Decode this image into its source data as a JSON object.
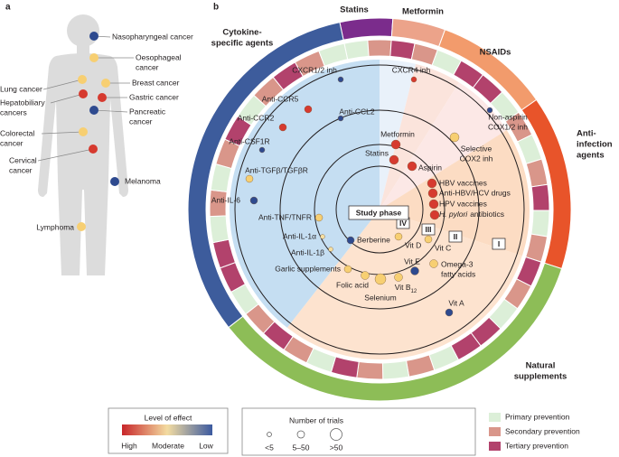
{
  "panel_a": {
    "label": "a",
    "cancers": [
      {
        "lines": [
          "Nasopharyngeal cancer"
        ],
        "color": "#2e4a8f"
      },
      {
        "lines": [
          "Oesophageal",
          "cancer"
        ],
        "color": "#f7cf72"
      },
      {
        "lines": [
          "Lung cancer"
        ],
        "color": "#f7cf72"
      },
      {
        "lines": [
          "Breast cancer"
        ],
        "color": "#f7cf72"
      },
      {
        "lines": [
          "Hepatobiliary",
          "cancers"
        ],
        "color": "#d63a2f"
      },
      {
        "lines": [
          "Gastric cancer"
        ],
        "color": "#d63a2f"
      },
      {
        "lines": [
          "Pancreatic",
          "cancer"
        ],
        "color": "#2e4a8f"
      },
      {
        "lines": [
          "Colorectal",
          "cancer"
        ],
        "color": "#f7cf72"
      },
      {
        "lines": [
          "Cervical",
          "cancer"
        ],
        "color": "#d63a2f"
      },
      {
        "lines": [
          "Melanoma"
        ],
        "color": "#2e4a8f"
      },
      {
        "lines": [
          "Lymphoma"
        ],
        "color": "#f7cf72"
      }
    ]
  },
  "panel_b": {
    "label": "b",
    "center_label": "Study phase",
    "phases": [
      "IV",
      "III",
      "II",
      "I"
    ],
    "classes": [
      {
        "lines": [
          "Statins"
        ],
        "color": "#7b2c8c"
      },
      {
        "lines": [
          "Metformin"
        ],
        "color": "#eca38a"
      },
      {
        "lines": [
          "NSAIDs"
        ],
        "color": "#f29b6c"
      },
      {
        "lines": [
          "Anti-",
          "infection",
          "agents"
        ],
        "color": "#e8542a"
      },
      {
        "lines": [
          "Natural",
          "supplements"
        ],
        "color": "#8dbd57"
      },
      {
        "lines": [
          "Cytokine-",
          "specific agents"
        ],
        "color": "#3d5c9c"
      }
    ],
    "agents": [
      {
        "lines": [
          "CXCR1/2 inh"
        ],
        "color": "#2e4a8f"
      },
      {
        "lines": [
          "CXCR4 inh"
        ],
        "color": "#d63a2f"
      },
      {
        "lines": [
          "Anti-CCR5"
        ],
        "color": "#d63a2f"
      },
      {
        "lines": [
          "Anti-CCL2"
        ],
        "color": "#2e4a8f"
      },
      {
        "lines": [
          "Anti-CCR2"
        ],
        "color": "#d63a2f"
      },
      {
        "lines": [
          "Anti-CSF1R"
        ],
        "color": "#2e4a8f"
      },
      {
        "lines": [
          "Anti-TGFβ/TGFβR"
        ],
        "color": "#f7cf72"
      },
      {
        "lines": [
          "Anti-IL-6"
        ],
        "color": "#2e4a8f"
      },
      {
        "lines": [
          "Anti-TNF/TNFR"
        ],
        "color": "#f7cf72"
      },
      {
        "lines": [
          "Anti-IL-1α"
        ],
        "color": "#f6dfa0"
      },
      {
        "lines": [
          "Anti-IL-1β"
        ],
        "color": "#f6dfa0"
      },
      {
        "lines": [
          "Garlic supplements"
        ],
        "color": "#f7cf72"
      },
      {
        "lines": [
          "Folic acid"
        ],
        "color": "#f7cf72"
      },
      {
        "lines": [
          "Selenium"
        ],
        "color": "#f7cf72"
      },
      {
        "lines": [
          "Vit B"
        ],
        "sub": "12",
        "color": "#f7cf72"
      },
      {
        "lines": [
          "Vit E"
        ],
        "color": "#2e4a8f"
      },
      {
        "lines": [
          "Omega-3",
          "fatty acids"
        ],
        "color": "#f7cf72"
      },
      {
        "lines": [
          "Vit D"
        ],
        "color": "#f7cf72"
      },
      {
        "lines": [
          "Vit C"
        ],
        "color": "#f7cf72"
      },
      {
        "lines": [
          "Berberine"
        ],
        "color": "#2e4a8f"
      },
      {
        "lines": [
          "Vit A"
        ],
        "color": "#2e4a8f"
      },
      {
        "lines": [
          "Statins"
        ],
        "color": "#d63a2f"
      },
      {
        "lines": [
          "Aspirin"
        ],
        "color": "#d63a2f"
      },
      {
        "lines": [
          "Metformin"
        ],
        "color": "#d63a2f"
      },
      {
        "lines": [
          "Selective",
          "COX2 inh"
        ],
        "color": "#f7cf72"
      },
      {
        "lines": [
          "Non-aspirin",
          "COX1/2 inh"
        ],
        "color": "#2e4a8f"
      },
      {
        "lines": [
          "HBV vaccines"
        ],
        "color": "#d63a2f"
      },
      {
        "lines": [
          "Anti-HBV/HCV drugs"
        ],
        "color": "#d63a2f"
      },
      {
        "lines": [
          "HPV vaccines"
        ],
        "color": "#d63a2f"
      },
      {
        "italic": "H. pylori",
        "lines": [
          "antibiotics"
        ],
        "color": "#d63a2f"
      }
    ]
  },
  "legend": {
    "effect": {
      "title": "Level of effect",
      "labels": [
        "High",
        "Moderate",
        "Low"
      ],
      "colors": [
        "#c8262a",
        "#f3dca1",
        "#3c5aa0"
      ]
    },
    "trials": {
      "title": "Number of trials",
      "labels": [
        "<5",
        "5–50",
        ">50"
      ]
    },
    "prevention": [
      {
        "label": "Primary prevention",
        "color": "#dcefd8"
      },
      {
        "label": "Secondary prevention",
        "color": "#d9968a"
      },
      {
        "label": "Tertiary prevention",
        "color": "#b2426c"
      }
    ]
  }
}
